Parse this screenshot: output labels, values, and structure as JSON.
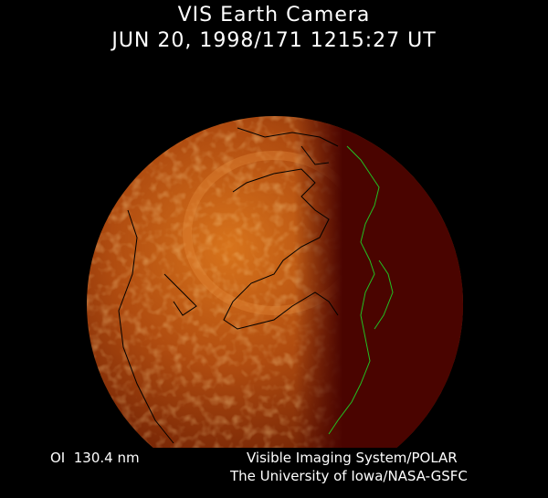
{
  "header": {
    "title": "VIS Earth Camera",
    "timestamp": "JUN 20, 1998/171 1215:27 UT"
  },
  "footer": {
    "wavelength": "OI  130.4 nm",
    "credit_line1": "Visible Imaging System/POLAR",
    "credit_line2": "The University of Iowa/NASA-GSFC"
  },
  "colors": {
    "background": "#000000",
    "aurora_bright": "#f0a040",
    "disk_mid": "#b84a10",
    "night_side": "#4a0400",
    "coastline_day": "#000000",
    "coastline_night": "#22c022"
  }
}
